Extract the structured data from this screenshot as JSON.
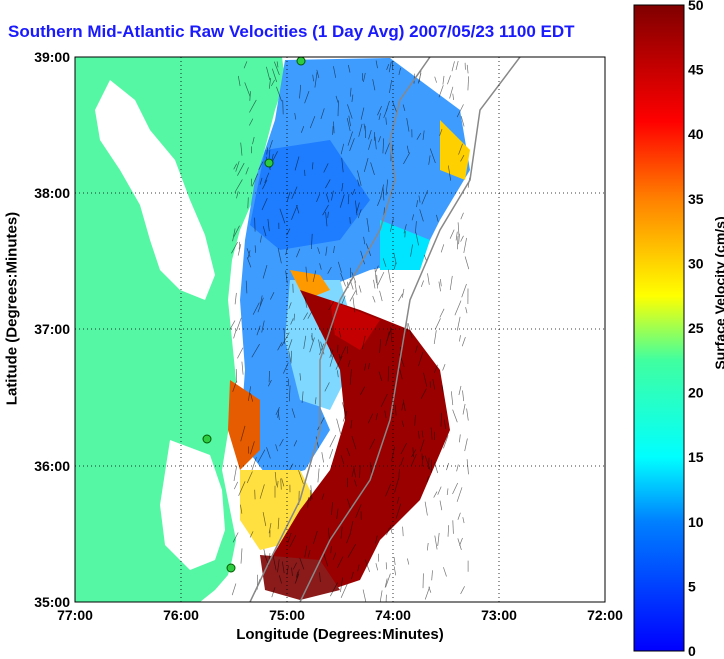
{
  "title": "Southern Mid-Atlantic Raw Velocities (1 Day Avg) 2007/05/23 1100 EDT",
  "xlabel": "Longitude (Degrees:Minutes)",
  "ylabel": "Latitude (Degrees:Minutes)",
  "colorbar": {
    "label": "Surface Velocity (cm/s)",
    "min": 0,
    "max": 50,
    "ticks": [
      "0",
      "5",
      "10",
      "15",
      "20",
      "25",
      "30",
      "35",
      "40",
      "45",
      "50"
    ]
  },
  "x_ticks": [
    "77:00",
    "76:00",
    "75:00",
    "74:00",
    "73:00",
    "72:00"
  ],
  "y_ticks": [
    "39:00",
    "38:00",
    "37:00",
    "36:00",
    "35:00"
  ],
  "colors": {
    "land": "#55f7a5",
    "water": "#ffffff",
    "title": "#1a1aff",
    "station": "#2ecc40"
  },
  "chart_data": {
    "type": "heatmap",
    "xlim": [
      -77,
      -72
    ],
    "ylim": [
      35,
      39
    ],
    "colorscale": "jet",
    "value_range": [
      0,
      50
    ],
    "grid": true
  }
}
